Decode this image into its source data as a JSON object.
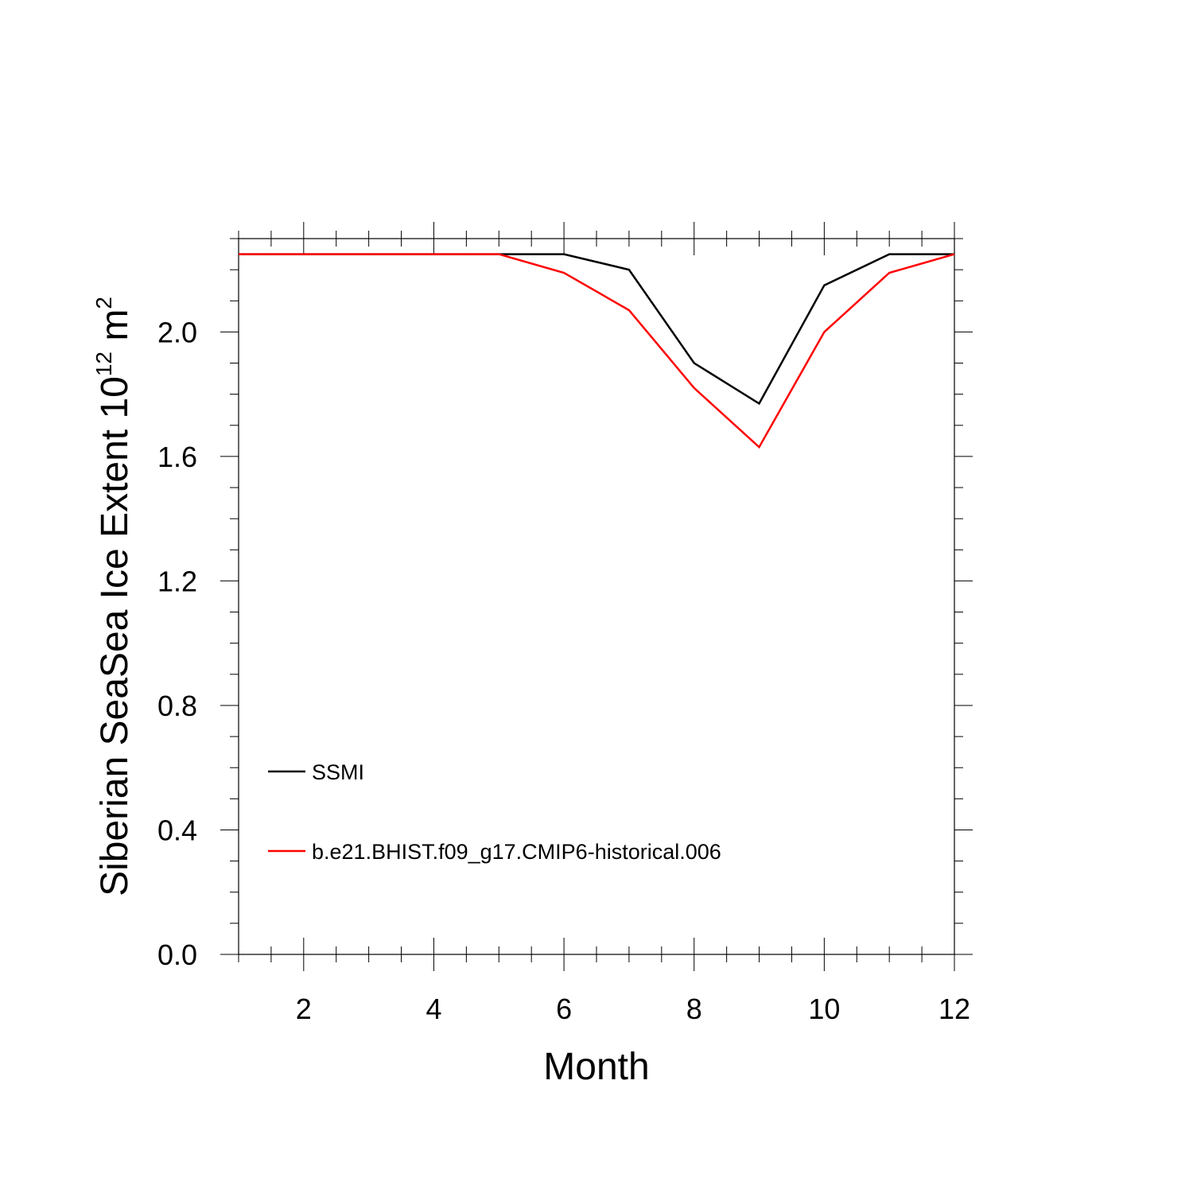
{
  "chart_data": {
    "type": "line",
    "xlabel": "Month",
    "ylabel_text": "Siberian SeaSea Ice Extent 10",
    "ylabel_exp1": "12",
    "ylabel_unit": " m",
    "ylabel_exp2": "2",
    "xlim": [
      1,
      12
    ],
    "ylim": [
      0,
      2.3
    ],
    "x_ticks": [
      2,
      4,
      6,
      8,
      10,
      12
    ],
    "x_tick_labels": [
      "2",
      "4",
      "6",
      "8",
      "10",
      "12"
    ],
    "y_ticks": [
      0,
      0.4,
      0.8,
      1.2,
      1.6,
      2.0
    ],
    "y_tick_labels": [
      "0.0",
      "0.4",
      "0.8",
      "1.2",
      "1.6",
      "2.0"
    ],
    "grid": false,
    "legend_position": "lower-left",
    "x": [
      1,
      2,
      3,
      4,
      5,
      6,
      7,
      8,
      9,
      10,
      11,
      12
    ],
    "series": [
      {
        "name": "SSMI",
        "color": "#000000",
        "values": [
          2.25,
          2.25,
          2.25,
          2.25,
          2.25,
          2.25,
          2.2,
          1.9,
          1.77,
          2.15,
          2.25,
          2.25
        ]
      },
      {
        "name": "b.e21.BHIST.f09_g17.CMIP6-historical.006",
        "color": "#ff0000",
        "values": [
          2.25,
          2.25,
          2.25,
          2.25,
          2.25,
          2.19,
          2.07,
          1.82,
          1.63,
          2.0,
          2.19,
          2.25
        ]
      }
    ]
  }
}
